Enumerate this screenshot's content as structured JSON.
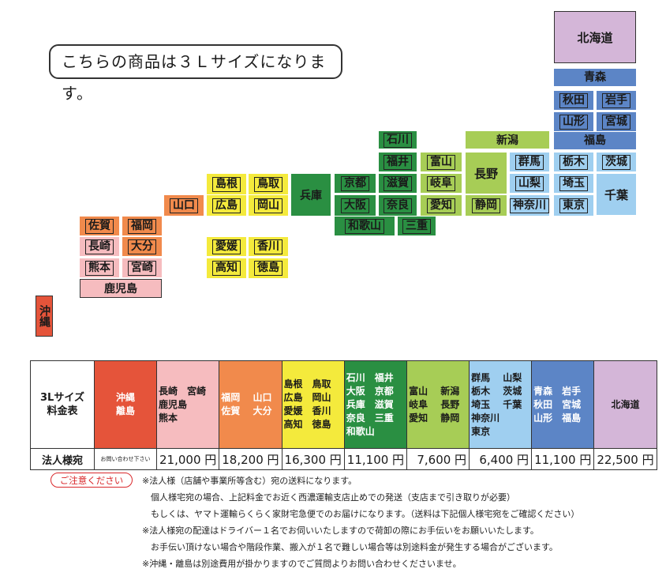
{
  "notice": "こちらの商品は３Ｌサイズになります。",
  "map": {
    "hokkaido": "北海道",
    "aomori": "青森",
    "akita": "秋田",
    "iwate": "岩手",
    "yamagata": "山形",
    "miyagi": "宮城",
    "fukushima": "福島",
    "niigata": "新潟",
    "nagano": "長野",
    "gunma": "群馬",
    "tochigi": "栃木",
    "ibaraki": "茨城",
    "yamanashi": "山梨",
    "saitama": "埼玉",
    "chiba": "千葉",
    "shizuoka": "静岡",
    "kanagawa": "神奈川",
    "tokyo": "東京",
    "ishikawa": "石川",
    "fukui": "福井",
    "toyama": "富山",
    "shiga": "滋賀",
    "gifu": "岐阜",
    "kyoto": "京都",
    "nara": "奈良",
    "aichi": "愛知",
    "osaka": "大阪",
    "wakayama": "和歌山",
    "mie": "三重",
    "hyogo": "兵庫",
    "shimane": "島根",
    "tottori": "鳥取",
    "yamaguchi": "山口",
    "hiroshima": "広島",
    "okayama": "岡山",
    "ehime": "愛媛",
    "kagawa": "香川",
    "kochi": "高知",
    "tokushima": "徳島",
    "saga": "佐賀",
    "fukuoka": "福岡",
    "nagasaki": "長崎",
    "oita": "大分",
    "kumamoto": "熊本",
    "miyazaki": "宮崎",
    "kagoshima": "鹿児島",
    "okinawa": "沖縄"
  },
  "table": {
    "header_label": "3Lサイズ\n料金表",
    "row_label": "法人様宛",
    "regions": [
      {
        "name": "沖縄\n離島",
        "price": "お問い合わせ下さい",
        "color": "#e5543a"
      },
      {
        "name": "長崎　宮崎\n鹿児島\n熊本",
        "price": "21,000 円",
        "color": "#f6bcbf"
      },
      {
        "name": "福岡　 山口\n佐賀　 大分",
        "price": "18,200 円",
        "color": "#f18a4c"
      },
      {
        "name": "島根　鳥取\n広島　岡山\n愛媛　香川\n高知　徳島",
        "price": "16,300 円",
        "color": "#f4ea3c"
      },
      {
        "name": "石川　福井\n大阪　京都\n兵庫　滋賀\n奈良　三重\n和歌山",
        "price": "11,100 円",
        "color": "#2a8f42"
      },
      {
        "name": "富山　 新潟\n岐阜　 長野\n愛知　 静岡",
        "price": "7,600 円",
        "color": "#a7cd56"
      },
      {
        "name": "群馬　 山梨\n栃木　 茨城\n埼玉　 千葉\n神奈川\n東京",
        "price": "6,400 円",
        "color": "#9fcff0"
      },
      {
        "name": "青森　岩手\n秋田　宮城\n山形　福島",
        "price": "11,100 円",
        "color": "#5c85c6"
      },
      {
        "name": "北海道",
        "price": "22,500 円",
        "color": "#d4b6d8"
      }
    ]
  },
  "caution_label": "ご注意ください",
  "notes": [
    "※法人様（店舗や事業所等含む）宛の送料になります。",
    "　個人様宅宛の場合、上記料金でお近く西濃運輸支店止めでの発送（支店まで引き取りが必要）",
    "　もしくは、ヤマト運輸らくらく家財宅急便でのお届けになります。（送料は下記個人様宅宛をご確認ください）",
    "※法人様宛の配達はドライバー１名でお伺いいたしますので荷卸の際にお手伝いをお願いいたします。",
    "　お手伝い頂けない場合や階段作業、搬入が１名で難しい場合等は別途料金が発生する場合がございます。",
    "※沖縄・離島は別途費用が掛かりますのでご質問よりお問い合わせくださいませ。"
  ]
}
